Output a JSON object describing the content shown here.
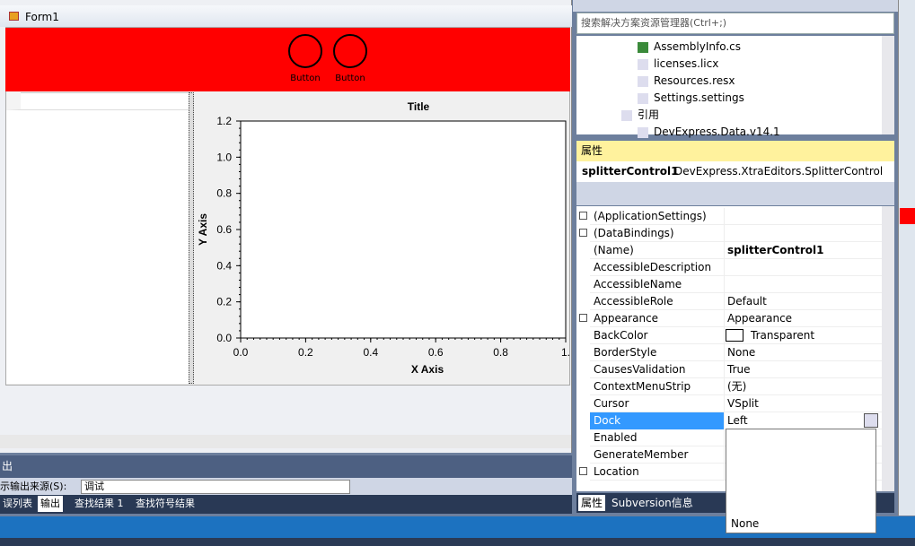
{
  "form": {
    "title": "Form1",
    "buttons": [
      "Button",
      "Button"
    ],
    "chart": {
      "title": "Title",
      "x_label": "X Axis",
      "y_label": "Y Axis",
      "xticks": [
        "0.0",
        "0.2",
        "0.4",
        "0.6",
        "0.8",
        "1."
      ],
      "yticks": [
        "0.0",
        "0.2",
        "0.4",
        "0.6",
        "0.8",
        "1.0",
        "1.2"
      ]
    }
  },
  "solution_explorer": {
    "search": "搜索解决方案资源管理器(Ctrl+;)",
    "items": [
      "AssemblyInfo.cs",
      "licenses.licx",
      "Resources.resx",
      "Settings.settings",
      "引用",
      "DevExpress.Data.v14.1"
    ]
  },
  "properties": {
    "title": "属性",
    "object": "splitterControl1",
    "object_type": "DevExpress.XtraEditors.SplitterControl",
    "rows": [
      {
        "name": "(ApplicationSettings)",
        "expand": true
      },
      {
        "name": "(DataBindings)",
        "expand": true
      },
      {
        "name": "(Name)",
        "value": "splitterControl1",
        "bold": true
      },
      {
        "name": "AccessibleDescription"
      },
      {
        "name": "AccessibleName"
      },
      {
        "name": "AccessibleRole",
        "value": "Default"
      },
      {
        "name": "Appearance",
        "value": "Appearance",
        "expand": true
      },
      {
        "name": "BackColor",
        "value": "Transparent",
        "swatch": true
      },
      {
        "name": "BorderStyle",
        "value": "None"
      },
      {
        "name": "CausesValidation",
        "value": "True"
      },
      {
        "name": "ContextMenuStrip",
        "value": "(无)"
      },
      {
        "name": "Cursor",
        "value": "VSplit"
      },
      {
        "name": "Dock",
        "value": "Left",
        "selected": true
      },
      {
        "name": "Enabled"
      },
      {
        "name": "GenerateMember"
      },
      {
        "name": "Location",
        "expand": true
      }
    ],
    "tabs": [
      "属性",
      "Subversion信息"
    ],
    "dropdown_option": "None"
  },
  "output": {
    "title": "出",
    "source_label": "示输出来源(S):",
    "source_value": "调试",
    "tabs": [
      "误列表",
      "输出",
      "查找结果 1",
      "查找符号结果"
    ]
  }
}
